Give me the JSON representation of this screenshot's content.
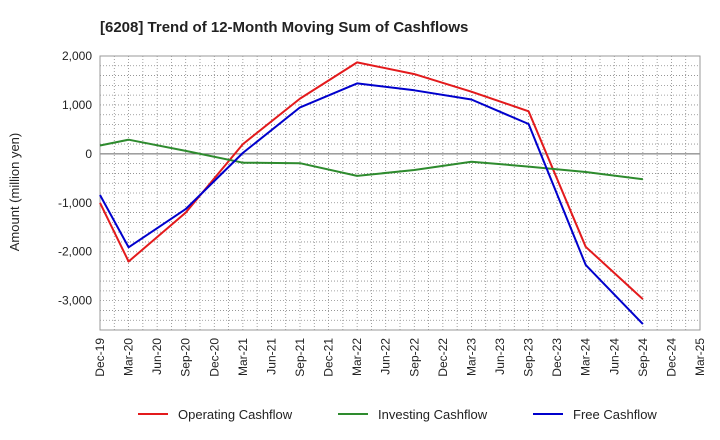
{
  "chart_data": {
    "type": "line",
    "title": "[6208]  Trend of 12-Month Moving Sum of Cashflows",
    "xlabel": "",
    "ylabel": "Amount (million yen)",
    "ylim": [
      -3600,
      2000
    ],
    "yticks": [
      2000,
      1000,
      0,
      -1000,
      -2000,
      -3000
    ],
    "ytick_labels": [
      "2,000",
      "1,000",
      "0",
      "-1,000",
      "-2,000",
      "-3,000"
    ],
    "categories": [
      "Dec-19",
      "Mar-20",
      "Jun-20",
      "Sep-20",
      "Dec-20",
      "Mar-21",
      "Jun-21",
      "Sep-21",
      "Dec-21",
      "Mar-22",
      "Jun-22",
      "Sep-22",
      "Dec-22",
      "Mar-23",
      "Jun-23",
      "Sep-23",
      "Dec-23",
      "Mar-24",
      "Jun-24",
      "Sep-24",
      "Dec-24",
      "Mar-25"
    ],
    "grid": true,
    "legend_position": "bottom",
    "series": [
      {
        "name": "Operating Cashflow",
        "color": "#e31a1c",
        "values": [
          -1000,
          -2200,
          null,
          -1200,
          null,
          200,
          null,
          1130,
          null,
          1870,
          null,
          1630,
          null,
          1270,
          null,
          870,
          null,
          -1900,
          null,
          -2970,
          null,
          null
        ]
      },
      {
        "name": "Investing Cashflow",
        "color": "#2e8b2e",
        "values": [
          170,
          290,
          null,
          60,
          null,
          -180,
          null,
          -190,
          null,
          -450,
          null,
          -330,
          null,
          -160,
          null,
          -260,
          null,
          -370,
          null,
          -520,
          null,
          null
        ]
      },
      {
        "name": "Free Cashflow",
        "color": "#0000cc",
        "values": [
          -840,
          -1910,
          null,
          -1130,
          null,
          20,
          null,
          950,
          null,
          1440,
          null,
          1300,
          null,
          1110,
          null,
          610,
          null,
          -2270,
          null,
          -3480,
          null,
          null
        ]
      }
    ]
  }
}
